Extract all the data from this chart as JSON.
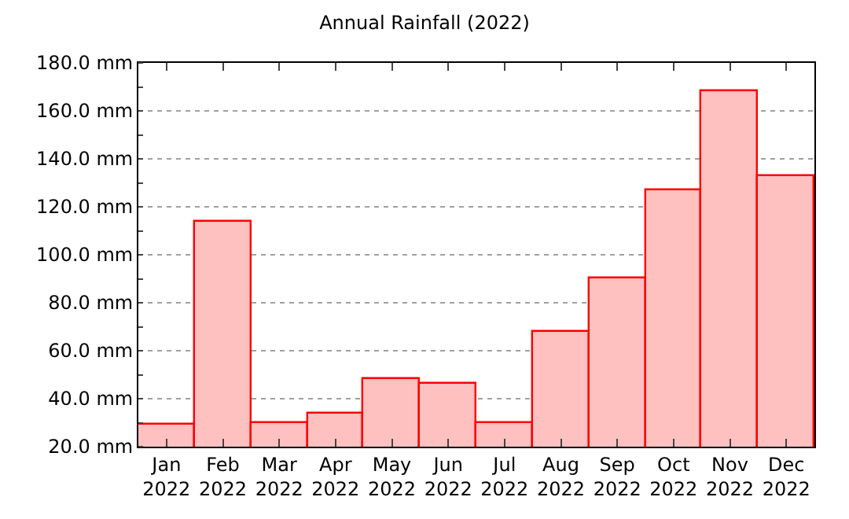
{
  "chart_data": {
    "type": "bar",
    "title": "Annual Rainfall (2022)",
    "categories": [
      "Jan\n2022",
      "Feb\n2022",
      "Mar\n2022",
      "Apr\n2022",
      "May\n2022",
      "Jun\n2022",
      "Jul\n2022",
      "Aug\n2022",
      "Sep\n2022",
      "Oct\n2022",
      "Nov\n2022",
      "Dec\n2022"
    ],
    "series": [
      {
        "color": "#ffc0c0",
        "values": [
          29,
          114,
          30,
          34,
          48,
          46,
          30,
          68,
          90,
          127,
          168,
          133
        ]
      }
    ],
    "ylim": [
      20,
      180
    ],
    "yticks": [
      {
        "value": 20,
        "label": "20.0 mm"
      },
      {
        "value": 40,
        "label": "40.0 mm"
      },
      {
        "value": 60,
        "label": "60.0 mm"
      },
      {
        "value": 80,
        "label": "80.0 mm"
      },
      {
        "value": 100,
        "label": "100.0 mm"
      },
      {
        "value": 120,
        "label": "120.0 mm"
      },
      {
        "value": 140,
        "label": "140.0 mm"
      },
      {
        "value": 160,
        "label": "160.0 mm"
      },
      {
        "value": 180,
        "label": "180.0 mm"
      }
    ],
    "grid": "y",
    "legend": false
  }
}
